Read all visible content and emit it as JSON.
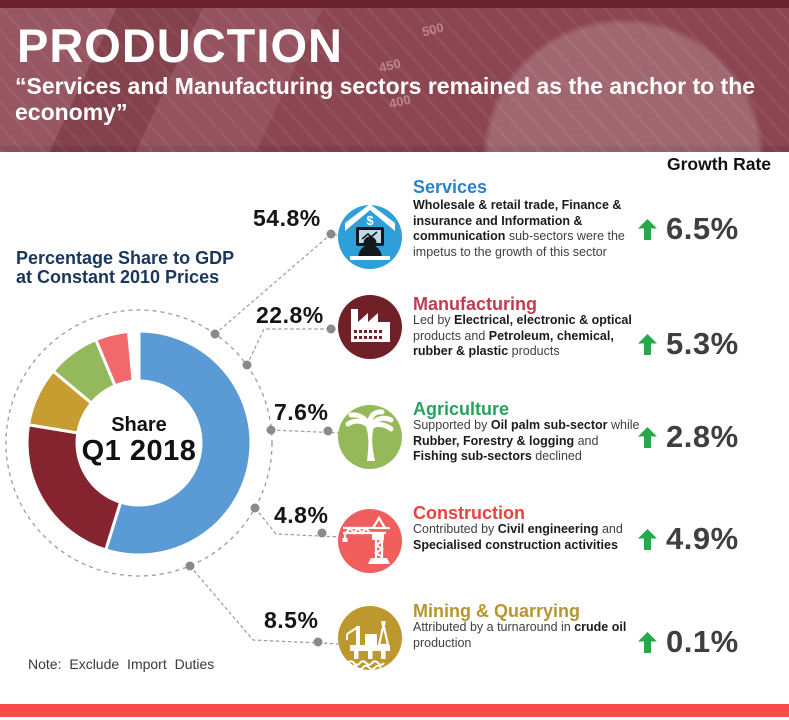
{
  "header": {
    "title": "PRODUCTION",
    "subtitle": "“Services and Manufacturing sectors remained as the anchor to the economy”",
    "bg_axis_labels": [
      "500",
      "450",
      "400"
    ]
  },
  "left_panel": {
    "caption_line1": "Percentage Share to GDP",
    "caption_line2": "at Constant 2010 Prices",
    "donut_center_line1": "Share",
    "donut_center_line2": "Q1 2018",
    "note": "Note: Exclude Import Duties"
  },
  "growth_header": "Growth Rate",
  "colors": {
    "header_bg": "#8C4652",
    "header_top_strip": "#6A2130",
    "bottom_bar": "#FA4B4B",
    "arrow_green": "#29A84B",
    "dashed_line": "#9C9C9C",
    "connector_dot": "#8A8A8A",
    "caption_navy": "#17375D"
  },
  "sections": [
    {
      "name": "Services",
      "share": "54.8%",
      "growth": "6.5%",
      "title_color": "#2884C6",
      "icon_bg": "#2E9FD8",
      "icon": "services-money-computer-icon",
      "desc": [
        {
          "b": true,
          "t": "Wholesale & retail trade, Finance & insurance and Information & communication"
        },
        {
          "b": false,
          "t": " sub-sectors were the impetus to the growth of this sector"
        }
      ]
    },
    {
      "name": "Manufacturing",
      "share": "22.8%",
      "growth": "5.3%",
      "title_color": "#C23B50",
      "icon_bg": "#6F2127",
      "icon": "factory-icon",
      "desc": [
        {
          "b": false,
          "t": "Led by "
        },
        {
          "b": true,
          "t": "Electrical, electronic & optical"
        },
        {
          "b": false,
          "t": " products and "
        },
        {
          "b": true,
          "t": "Petroleum, chemical, rubber & plastic"
        },
        {
          "b": false,
          "t": " products"
        }
      ]
    },
    {
      "name": "Agriculture",
      "share": "7.6%",
      "growth": "2.8%",
      "title_color": "#27A35D",
      "icon_bg": "#95B959",
      "icon": "palm-tree-icon",
      "desc": [
        {
          "b": false,
          "t": "Supported by "
        },
        {
          "b": true,
          "t": "Oil palm sub-sector"
        },
        {
          "b": false,
          "t": " while "
        },
        {
          "b": true,
          "t": "Rubber, Forestry & logging"
        },
        {
          "b": false,
          "t": " and "
        },
        {
          "b": true,
          "t": "Fishing sub-sectors"
        },
        {
          "b": false,
          "t": " declined"
        }
      ]
    },
    {
      "name": "Construction",
      "share": "4.8%",
      "growth": "4.9%",
      "title_color": "#EA423C",
      "icon_bg": "#F15E5E",
      "icon": "crane-icon",
      "desc": [
        {
          "b": false,
          "t": "Contributed by "
        },
        {
          "b": true,
          "t": "Civil engineering"
        },
        {
          "b": false,
          "t": " and "
        },
        {
          "b": true,
          "t": "Specialised construction activities"
        }
      ]
    },
    {
      "name": "Mining & Quarrying",
      "share": "8.5%",
      "growth": "0.1%",
      "title_color": "#B8952E",
      "icon_bg": "#BD982F",
      "icon": "oil-rig-icon",
      "desc": [
        {
          "b": false,
          "t": "Attributed by a turnaround in "
        },
        {
          "b": true,
          "t": "crude oil"
        },
        {
          "b": false,
          "t": " production"
        }
      ]
    }
  ],
  "chart_data": {
    "type": "pie",
    "subtype": "donut",
    "title": "Percentage Share to GDP at Constant 2010 Prices",
    "center_label": "Share Q1 2018",
    "note": "Exclude Import Duties",
    "categories": [
      "Services",
      "Manufacturing",
      "Agriculture",
      "Construction",
      "Mining & Quarrying"
    ],
    "values": [
      54.8,
      22.8,
      7.6,
      4.8,
      8.5
    ],
    "growth_rates_pct": [
      6.5,
      5.3,
      2.8,
      4.9,
      0.1
    ],
    "slices_clockwise_from_top": [
      {
        "label": "Services",
        "value": 54.8,
        "color": "#5B9BD5"
      },
      {
        "label": "Manufacturing",
        "value": 22.8,
        "color": "#85242F"
      },
      {
        "label": "Mining & Quarrying",
        "value": 8.5,
        "color": "#C79C30"
      },
      {
        "label": "Agriculture",
        "value": 7.6,
        "color": "#94B95C"
      },
      {
        "label": "Construction",
        "value": 4.8,
        "color": "#F2696B"
      }
    ]
  }
}
